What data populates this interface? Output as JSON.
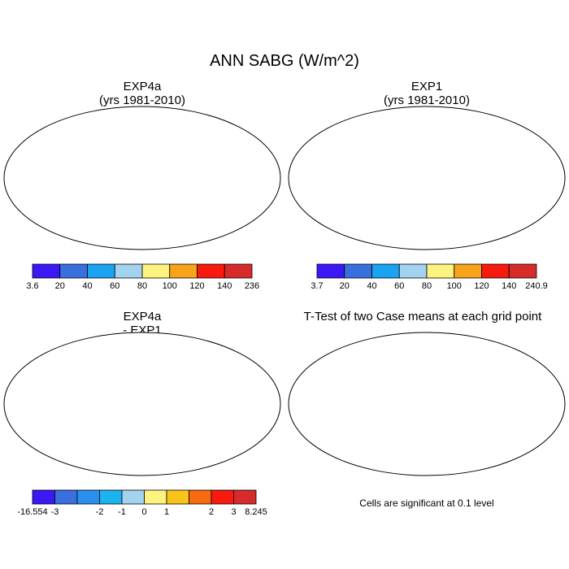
{
  "title": "ANN SABG (W/m^2)",
  "colors": {
    "abs_scale": [
      "#3a19f5",
      "#3a6fe0",
      "#1aa3f0",
      "#a3d3ef",
      "#fef37e",
      "#f8a41a",
      "#f81a0e",
      "#d72a2a"
    ],
    "diff_scale": [
      "#3a19f5",
      "#3a6fe0",
      "#2b8ff0",
      "#1ab3f0",
      "#a3d3ef",
      "#fef37e",
      "#f8c41a",
      "#f86a0e",
      "#f81a0e",
      "#d72a2a"
    ],
    "significant": "#f30000",
    "land_outline": "#000000"
  },
  "chart_data": [
    {
      "type": "heatmap",
      "panel": "top-left",
      "title_line1": "EXP4a",
      "title_line2": "(yrs 1981-2010)",
      "projection": "Robinson global map",
      "colorbar": {
        "labels": [
          "3.6",
          "20",
          "40",
          "60",
          "80",
          "100",
          "120",
          "140",
          "236"
        ]
      }
    },
    {
      "type": "heatmap",
      "panel": "top-right",
      "title_line1": "EXP1",
      "title_line2": "(yrs 1981-2010)",
      "projection": "Robinson global map",
      "colorbar": {
        "labels": [
          "3.7",
          "20",
          "40",
          "60",
          "80",
          "100",
          "120",
          "140",
          "240.9"
        ]
      }
    },
    {
      "type": "heatmap",
      "panel": "bottom-left",
      "title_line1": "EXP4a",
      "title_line2": "- EXP1",
      "projection": "Robinson global map",
      "colorbar": {
        "labels": [
          "-16.554",
          "-3",
          "-2",
          "-1",
          "0",
          "1",
          "2",
          "3",
          "8.245"
        ]
      }
    },
    {
      "type": "heatmap",
      "panel": "bottom-right",
      "title_line1": "T-Test of two Case means at each grid point",
      "projection": "Robinson global map",
      "note": "Cells are significant at 0.1 level"
    }
  ]
}
